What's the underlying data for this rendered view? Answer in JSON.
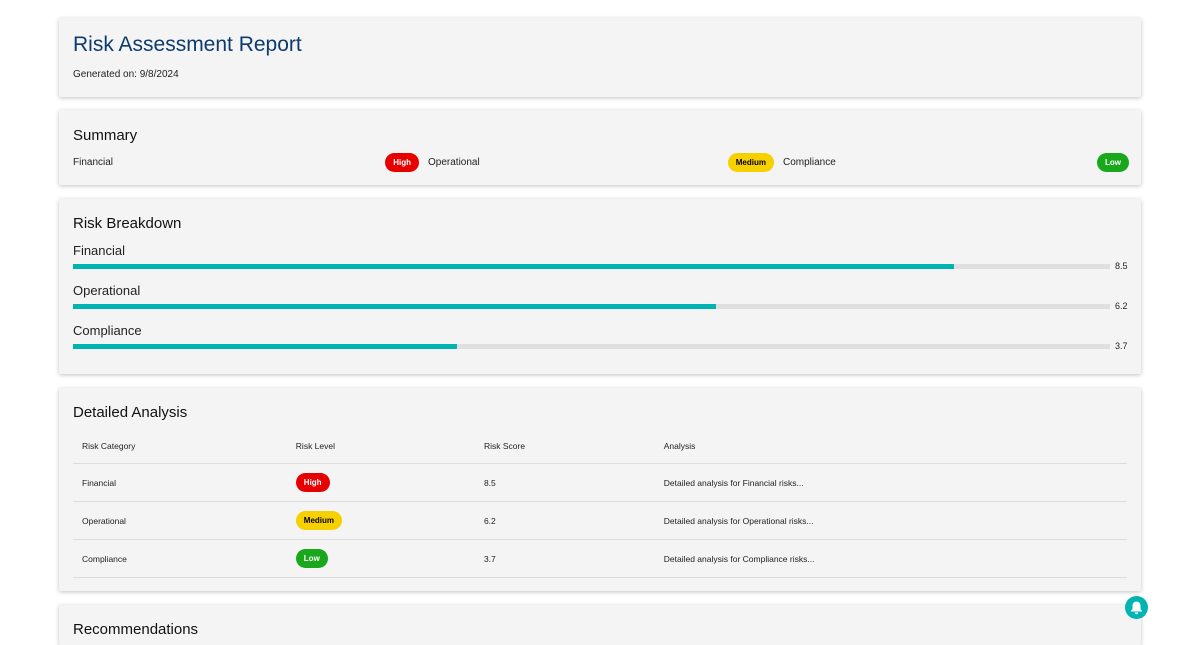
{
  "header": {
    "title": "Risk Assessment Report",
    "generated": "Generated on: 9/8/2024"
  },
  "summary": {
    "title": "Summary",
    "items": [
      {
        "category": "Financial",
        "level": "High"
      },
      {
        "category": "Operational",
        "level": "Medium"
      },
      {
        "category": "Compliance",
        "level": "Low"
      }
    ]
  },
  "breakdown": {
    "title": "Risk Breakdown",
    "xlim": [
      0,
      10
    ],
    "color": "#00b4b4",
    "track": "#e0e0e0",
    "items": [
      {
        "category": "Financial",
        "value": 8.5
      },
      {
        "category": "Operational",
        "value": 6.2
      },
      {
        "category": "Compliance",
        "value": 3.7
      }
    ]
  },
  "analysis": {
    "title": "Detailed Analysis",
    "columns": [
      "Risk Category",
      "Risk Level",
      "Risk Score",
      "Analysis"
    ],
    "rows": [
      [
        "Financial",
        "High",
        8.5,
        "Detailed analysis for Financial risks..."
      ],
      [
        "Operational",
        "Medium",
        6.2,
        "Detailed analysis for Operational risks..."
      ],
      [
        "Compliance",
        "Low",
        3.7,
        "Detailed analysis for Compliance risks..."
      ]
    ]
  },
  "recommendations": {
    "title": "Recommendations"
  },
  "level_colors": {
    "High": {
      "bg": "#e60000",
      "fg": "#ffffff"
    },
    "Medium": {
      "bg": "#f7d000",
      "fg": "#000000"
    },
    "Low": {
      "bg": "#19a81c",
      "fg": "#ffffff"
    }
  }
}
